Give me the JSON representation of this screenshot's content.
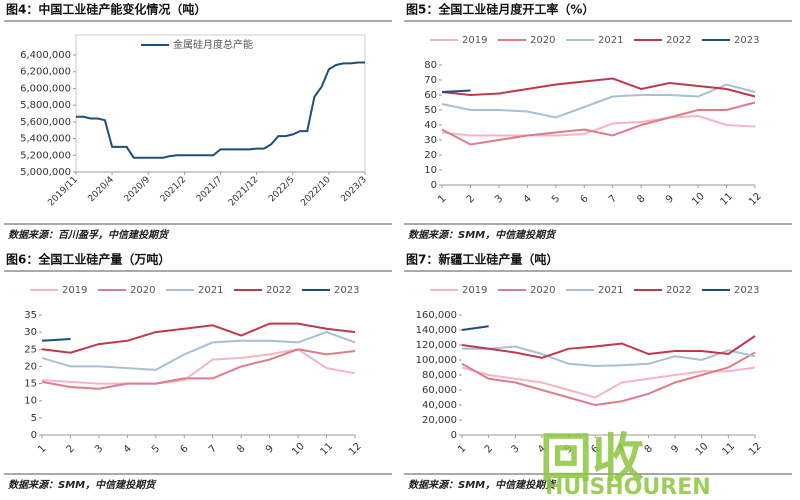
{
  "chart_data": [
    {
      "type": "line",
      "title": "图4：中国工业硅产能变化情况（吨）",
      "source": "数据来源：百川盈孚，中信建投期货",
      "legend": "upper left",
      "categories": [
        "2019/11",
        null,
        null,
        null,
        null,
        "2020/4",
        null,
        null,
        null,
        null,
        "2020/9",
        null,
        null,
        null,
        null,
        "2021/2",
        null,
        null,
        null,
        null,
        "2021/7",
        null,
        null,
        null,
        null,
        "2021/12",
        null,
        null,
        null,
        null,
        "2022/5",
        null,
        null,
        null,
        null,
        "2022/10",
        null,
        null,
        null,
        null,
        "2023/3"
      ],
      "series": [
        {
          "name": "金属硅月度总产能",
          "color": "#1f4e79",
          "values": [
            5660000,
            5660000,
            5640000,
            5640000,
            5620000,
            5300000,
            5300000,
            5300000,
            5170000,
            5170000,
            5170000,
            5170000,
            5170000,
            5190000,
            5200000,
            5200000,
            5200000,
            5200000,
            5200000,
            5200000,
            5270000,
            5270000,
            5270000,
            5270000,
            5270000,
            5280000,
            5280000,
            5330000,
            5430000,
            5430000,
            5450000,
            5490000,
            5490000,
            5900000,
            6020000,
            6230000,
            6280000,
            6300000,
            6300000,
            6310000,
            6310000
          ]
        }
      ],
      "ylim": [
        5000000,
        6400000
      ],
      "yticks": [
        {
          "value": 5000000,
          "label": "5,000,000"
        },
        {
          "value": 5200000,
          "label": "5,200,000"
        },
        {
          "value": 5400000,
          "label": "5,400,000"
        },
        {
          "value": 5600000,
          "label": "5,600,000"
        },
        {
          "value": 5800000,
          "label": "5,800,000"
        },
        {
          "value": 6000000,
          "label": "6,000,000"
        },
        {
          "value": 6200000,
          "label": "6,200,000"
        },
        {
          "value": 6400000,
          "label": "6,400,000"
        }
      ]
    },
    {
      "type": "line",
      "title": "图5：全国工业硅月度开工率（%）",
      "source": "数据来源：SMM，中信建投期货",
      "legend": "top",
      "x": [
        1,
        2,
        3,
        4,
        5,
        6,
        7,
        8,
        9,
        10,
        11,
        12
      ],
      "xlim": [
        1,
        12
      ],
      "xticks": [
        1,
        2,
        3,
        4,
        5,
        6,
        7,
        8,
        9,
        10,
        11,
        12
      ],
      "series": [
        {
          "name": "2019",
          "color": "#f4b6c2",
          "values": [
            35,
            33,
            33,
            33,
            33,
            34,
            41,
            42,
            45,
            46,
            40,
            39
          ]
        },
        {
          "name": "2020",
          "color": "#e07b8a",
          "values": [
            37,
            27,
            30,
            33,
            35,
            37,
            33,
            40,
            45,
            50,
            50,
            55
          ]
        },
        {
          "name": "2021",
          "color": "#a9bfd3",
          "values": [
            54,
            50,
            50,
            49,
            45,
            52,
            59,
            60,
            60,
            59,
            67,
            62
          ]
        },
        {
          "name": "2022",
          "color": "#c0394b",
          "values": [
            62,
            60,
            61,
            64,
            67,
            69,
            71,
            64,
            68,
            66,
            64,
            59
          ]
        },
        {
          "name": "2023",
          "color": "#1f4e79",
          "values": [
            62,
            63,
            null,
            null,
            null,
            null,
            null,
            null,
            null,
            null,
            null,
            null
          ]
        }
      ],
      "ylim": [
        0,
        80
      ],
      "yticks": [
        0,
        10,
        20,
        30,
        40,
        50,
        60,
        70,
        80
      ]
    },
    {
      "type": "line",
      "title": "图6：全国工业硅产量（万吨）",
      "source": "数据来源：SMM，中信建投期货",
      "legend": "top",
      "x": [
        1,
        2,
        3,
        4,
        5,
        6,
        7,
        8,
        9,
        10,
        11,
        12
      ],
      "xlim": [
        1,
        12
      ],
      "xticks": [
        1,
        2,
        3,
        4,
        5,
        6,
        7,
        8,
        9,
        10,
        11,
        12
      ],
      "series": [
        {
          "name": "2019",
          "color": "#f4b6c2",
          "values": [
            16,
            15.5,
            15,
            15,
            15,
            16,
            22,
            22.5,
            23.5,
            25,
            19.5,
            18
          ]
        },
        {
          "name": "2020",
          "color": "#e07b8a",
          "values": [
            15.5,
            14,
            13.5,
            15,
            15,
            16.5,
            16.5,
            20,
            22,
            25,
            23.5,
            24.5
          ]
        },
        {
          "name": "2021",
          "color": "#a9bfd3",
          "values": [
            22.5,
            20,
            20,
            19.5,
            19,
            23.5,
            27,
            27.5,
            27.5,
            27,
            30,
            27
          ]
        },
        {
          "name": "2022",
          "color": "#c0394b",
          "values": [
            25,
            24,
            26.5,
            27.5,
            30,
            31,
            32,
            29,
            32.5,
            32.5,
            31,
            30
          ]
        },
        {
          "name": "2023",
          "color": "#1f4e79",
          "values": [
            27.5,
            28,
            null,
            null,
            null,
            null,
            null,
            null,
            null,
            null,
            null,
            null
          ]
        }
      ],
      "ylim": [
        0,
        35
      ],
      "yticks": [
        0,
        5,
        10,
        15,
        20,
        25,
        30,
        35
      ]
    },
    {
      "type": "line",
      "title": "图7：新疆工业硅产量（吨）",
      "source": "数据来源：SMM，中信建投期货",
      "legend": "top",
      "x": [
        1,
        2,
        3,
        4,
        5,
        6,
        7,
        8,
        9,
        10,
        11,
        12
      ],
      "xlim": [
        1,
        12
      ],
      "xticks": [
        1,
        2,
        3,
        4,
        5,
        6,
        7,
        8,
        9,
        10,
        11,
        12
      ],
      "series": [
        {
          "name": "2019",
          "color": "#f4b6c2",
          "values": [
            90000,
            80000,
            75000,
            70000,
            60000,
            50000,
            70000,
            75000,
            80000,
            85000,
            85000,
            90000
          ]
        },
        {
          "name": "2020",
          "color": "#e07b8a",
          "values": [
            95000,
            75000,
            70000,
            60000,
            50000,
            40000,
            45000,
            55000,
            70000,
            80000,
            90000,
            110000
          ]
        },
        {
          "name": "2021",
          "color": "#a9bfd3",
          "values": [
            115000,
            115000,
            118000,
            108000,
            95000,
            92000,
            93000,
            95000,
            105000,
            100000,
            113000,
            105000
          ]
        },
        {
          "name": "2022",
          "color": "#c0394b",
          "values": [
            120000,
            115000,
            110000,
            103000,
            115000,
            118000,
            122000,
            108000,
            112000,
            112000,
            108000,
            132000
          ]
        },
        {
          "name": "2023",
          "color": "#1f4e79",
          "values": [
            140000,
            145000,
            null,
            null,
            null,
            null,
            null,
            null,
            null,
            null,
            null,
            null
          ]
        }
      ],
      "ylim": [
        0,
        160000
      ],
      "yticks": [
        0,
        {
          "value": 20000,
          "label": "20,000"
        },
        {
          "value": 40000,
          "label": "40,000"
        },
        {
          "value": 60000,
          "label": "60,000"
        },
        {
          "value": 80000,
          "label": "80,000"
        },
        {
          "value": 100000,
          "label": "100,000"
        },
        {
          "value": 120000,
          "label": "120,000"
        },
        {
          "value": 140000,
          "label": "140,000"
        },
        {
          "value": 160000,
          "label": "160,000"
        }
      ]
    }
  ],
  "watermark": [
    "回收",
    "HUISHOUREN"
  ]
}
